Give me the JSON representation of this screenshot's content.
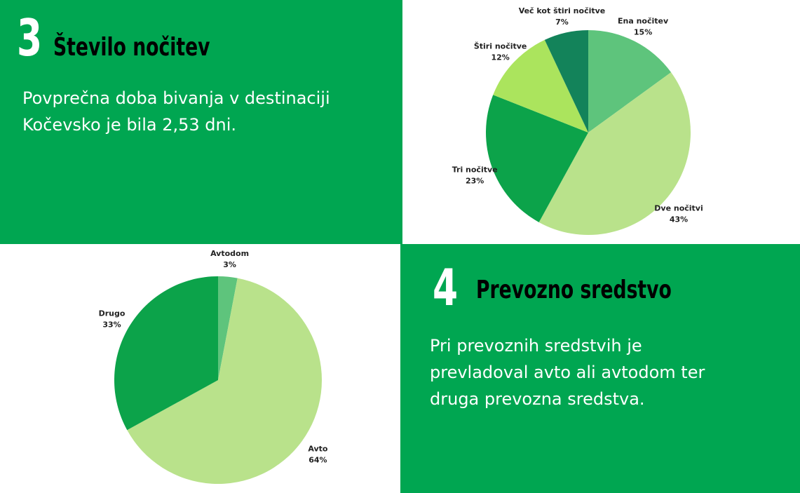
{
  "section3": {
    "number": "3",
    "title": "Število nočitev",
    "body_line1": "Povprečna doba bivanja v destinaciji",
    "body_line2": "Kočevsko je bila 2,53 dni."
  },
  "section4": {
    "number": "4",
    "title": "Prevozno sredstvo",
    "body_line1": "Pri prevoznih sredstvih je",
    "body_line2": "prevladoval avto ali avtodom ter",
    "body_line3": "druga prevozna sredstva."
  },
  "chart_data": [
    {
      "type": "pie",
      "title": "",
      "categories": [
        "Ena nočitev",
        "Dve nočitvi",
        "Tri nočitve",
        "Štiri nočitve",
        "Več kot štiri nočitve"
      ],
      "values": [
        15,
        43,
        23,
        12,
        7
      ],
      "value_labels": [
        "15%",
        "43%",
        "23%",
        "12%",
        "7%"
      ],
      "colors": [
        "#5ec47c",
        "#b9e28b",
        "#0ca34a",
        "#abe45d",
        "#13835a"
      ],
      "start": "top, clockwise",
      "legend": "none, labels outside slices"
    },
    {
      "type": "pie",
      "title": "",
      "categories": [
        "Avtodom",
        "Avto",
        "Drugo"
      ],
      "values": [
        3,
        64,
        33
      ],
      "value_labels": [
        "3%",
        "64%",
        "33%"
      ],
      "colors": [
        "#5ec47c",
        "#b9e28b",
        "#0ca34a"
      ],
      "start": "top, clockwise",
      "legend": "none, labels outside slices"
    }
  ]
}
